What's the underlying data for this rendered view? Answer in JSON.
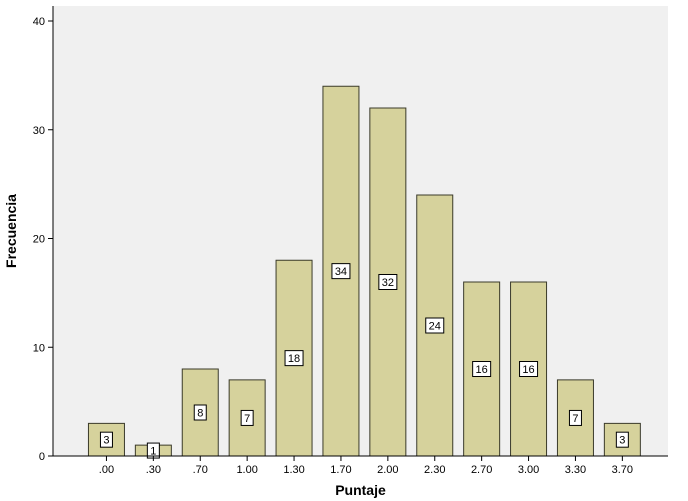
{
  "chart_data": {
    "type": "bar",
    "title": "",
    "xlabel": "Puntaje",
    "ylabel": "Frecuencia",
    "categories": [
      ".00",
      ".30",
      ".70",
      "1.00",
      "1.30",
      "1.70",
      "2.00",
      "2.30",
      "2.70",
      "3.00",
      "3.30",
      "3.70"
    ],
    "values": [
      3,
      1,
      8,
      7,
      18,
      34,
      32,
      24,
      16,
      16,
      7,
      3
    ],
    "ylim": [
      0,
      40
    ],
    "yticks": [
      0,
      10,
      20,
      30,
      40
    ],
    "grid": false,
    "data_labels": true,
    "colors": {
      "bar_fill": "#d6d29c",
      "bar_stroke": "#3a3a2a",
      "plot_background": "#f0f0f0",
      "page_background": "#ffffff"
    }
  }
}
